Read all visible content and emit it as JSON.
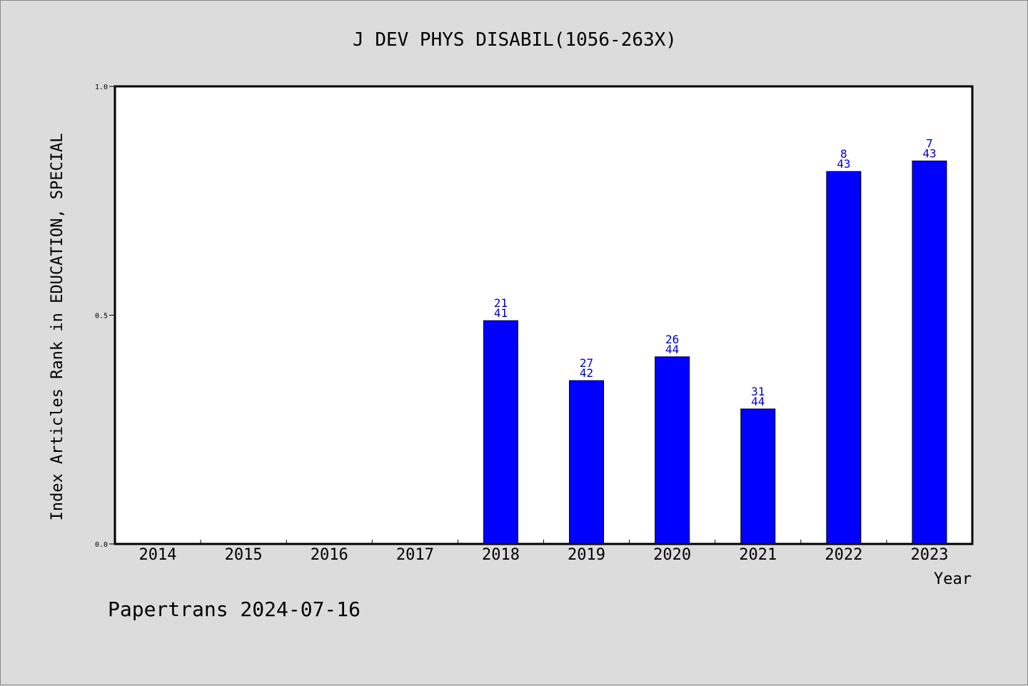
{
  "chart_data": {
    "type": "bar",
    "title": "J DEV PHYS DISABIL(1056-263X)",
    "xlabel": "Year",
    "ylabel": "Index Articles Rank in EDUCATION, SPECIAL",
    "ylim": [
      0,
      1
    ],
    "yticks": [
      "0.0",
      "0.5",
      "1.0"
    ],
    "grid": false,
    "categories": [
      "2014",
      "2015",
      "2016",
      "2017",
      "2018",
      "2019",
      "2020",
      "2021",
      "2022",
      "2023"
    ],
    "values": [
      null,
      null,
      null,
      null,
      0.488,
      0.357,
      0.409,
      0.295,
      0.814,
      0.837
    ],
    "bar_labels": [
      null,
      null,
      null,
      null,
      {
        "rank": "21",
        "total": "41"
      },
      {
        "rank": "27",
        "total": "42"
      },
      {
        "rank": "26",
        "total": "44"
      },
      {
        "rank": "31",
        "total": "44"
      },
      {
        "rank": "8",
        "total": "43"
      },
      {
        "rank": "7",
        "total": "43"
      }
    ],
    "bar_color": "#0000ff",
    "label_color": "#0000cc"
  },
  "footer": "Papertrans 2024-07-16"
}
